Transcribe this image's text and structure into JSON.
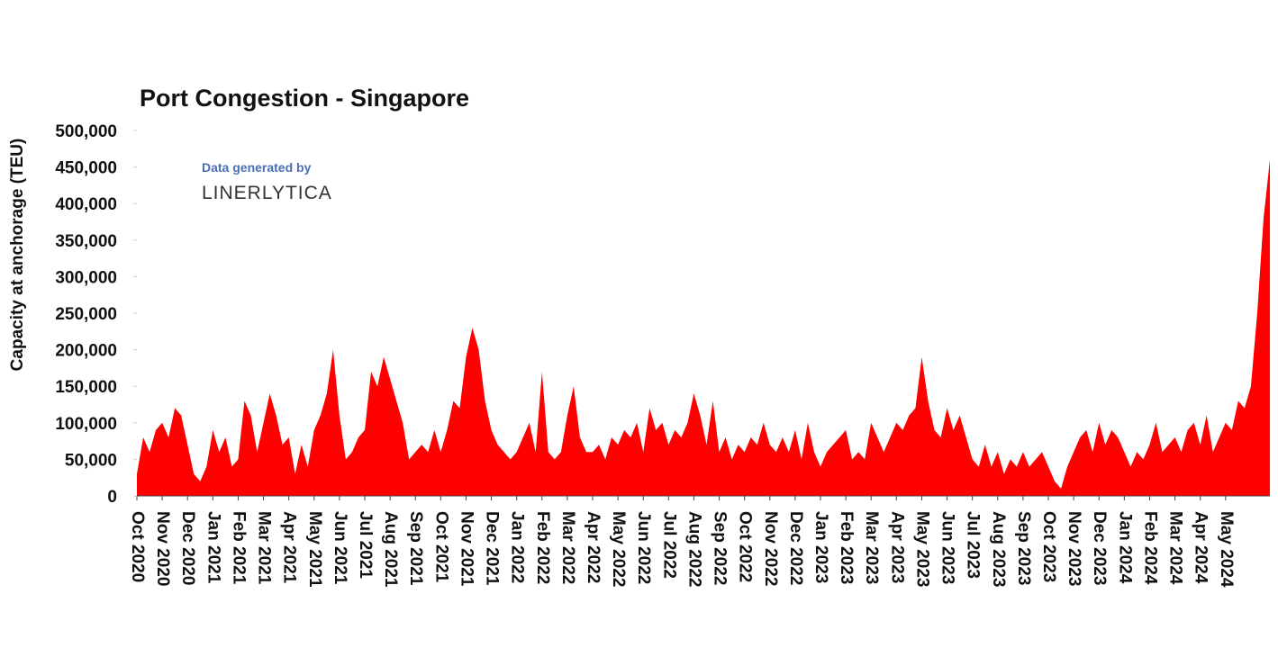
{
  "chart_data": {
    "type": "area",
    "title": "Port Congestion - Singapore",
    "y_label": "Capacity at anchorage (TEU)",
    "annotations": [
      "Data generated by",
      "LINERLYTICA"
    ],
    "color": "#ff0000",
    "ylim": [
      0,
      500000
    ],
    "yticks": [
      0,
      {
        "value": 50000,
        "label": "50,000"
      },
      {
        "value": 100000,
        "label": "100,000"
      },
      {
        "value": 150000,
        "label": "150,000"
      },
      {
        "value": 200000,
        "label": "200,000"
      },
      {
        "value": 250000,
        "label": "250,000"
      },
      {
        "value": 300000,
        "label": "300,000"
      },
      {
        "value": 350000,
        "label": "350,000"
      },
      {
        "value": 400000,
        "label": "400,000"
      },
      {
        "value": 450000,
        "label": "450,000"
      },
      {
        "value": 500000,
        "label": "500,000"
      }
    ],
    "categories": [
      "Oct 2020",
      null,
      null,
      null,
      "Nov 2020",
      null,
      null,
      null,
      "Dec 2020",
      null,
      null,
      null,
      "Jan 2021",
      null,
      null,
      null,
      "Feb 2021",
      null,
      null,
      null,
      "Mar 2021",
      null,
      null,
      null,
      "Apr 2021",
      null,
      null,
      null,
      "May 2021",
      null,
      null,
      null,
      "Jun 2021",
      null,
      null,
      null,
      "Jul 2021",
      null,
      null,
      null,
      "Aug 2021",
      null,
      null,
      null,
      "Sep 2021",
      null,
      null,
      null,
      "Oct 2021",
      null,
      null,
      null,
      "Nov 2021",
      null,
      null,
      null,
      "Dec 2021",
      null,
      null,
      null,
      "Jan 2022",
      null,
      null,
      null,
      "Feb 2022",
      null,
      null,
      null,
      "Mar 2022",
      null,
      null,
      null,
      "Apr 2022",
      null,
      null,
      null,
      "May 2022",
      null,
      null,
      null,
      "Jun 2022",
      null,
      null,
      null,
      "Jul 2022",
      null,
      null,
      null,
      "Aug 2022",
      null,
      null,
      null,
      "Sep 2022",
      null,
      null,
      null,
      "Oct 2022",
      null,
      null,
      null,
      "Nov 2022",
      null,
      null,
      null,
      "Dec 2022",
      null,
      null,
      null,
      "Jan 2023",
      null,
      null,
      null,
      "Feb 2023",
      null,
      null,
      null,
      "Mar 2023",
      null,
      null,
      null,
      "Apr 2023",
      null,
      null,
      null,
      "May 2023",
      null,
      null,
      null,
      "Jun 2023",
      null,
      null,
      null,
      "Jul 2023",
      null,
      null,
      null,
      "Aug 2023",
      null,
      null,
      null,
      "Sep 2023",
      null,
      null,
      null,
      "Oct 2023",
      null,
      null,
      null,
      "Nov 2023",
      null,
      null,
      null,
      "Dec 2023",
      null,
      null,
      null,
      "Jan 2024",
      null,
      null,
      null,
      "Feb 2024",
      null,
      null,
      null,
      "Mar 2024",
      null,
      null,
      null,
      "Apr 2024",
      null,
      null,
      null,
      "May 2024",
      null,
      null,
      null,
      null,
      null,
      null,
      null
    ],
    "values": [
      30000,
      80000,
      60000,
      90000,
      100000,
      80000,
      120000,
      110000,
      70000,
      30000,
      20000,
      40000,
      90000,
      60000,
      80000,
      40000,
      50000,
      130000,
      110000,
      60000,
      100000,
      140000,
      110000,
      70000,
      80000,
      30000,
      70000,
      40000,
      90000,
      110000,
      140000,
      200000,
      110000,
      50000,
      60000,
      80000,
      90000,
      170000,
      150000,
      190000,
      160000,
      130000,
      100000,
      50000,
      60000,
      70000,
      60000,
      90000,
      60000,
      90000,
      130000,
      120000,
      190000,
      230000,
      200000,
      130000,
      90000,
      70000,
      60000,
      50000,
      60000,
      80000,
      100000,
      60000,
      170000,
      60000,
      50000,
      60000,
      110000,
      150000,
      80000,
      60000,
      60000,
      70000,
      50000,
      80000,
      70000,
      90000,
      80000,
      100000,
      60000,
      120000,
      90000,
      100000,
      70000,
      90000,
      80000,
      100000,
      140000,
      110000,
      70000,
      130000,
      60000,
      80000,
      50000,
      70000,
      60000,
      80000,
      70000,
      100000,
      70000,
      60000,
      80000,
      60000,
      90000,
      50000,
      100000,
      60000,
      40000,
      60000,
      70000,
      80000,
      90000,
      50000,
      60000,
      50000,
      100000,
      80000,
      60000,
      80000,
      100000,
      90000,
      110000,
      120000,
      190000,
      130000,
      90000,
      80000,
      120000,
      90000,
      110000,
      80000,
      50000,
      40000,
      70000,
      40000,
      60000,
      30000,
      50000,
      40000,
      60000,
      40000,
      50000,
      60000,
      40000,
      20000,
      10000,
      40000,
      60000,
      80000,
      90000,
      60000,
      100000,
      70000,
      90000,
      80000,
      60000,
      40000,
      60000,
      50000,
      70000,
      100000,
      60000,
      70000,
      80000,
      60000,
      90000,
      100000,
      70000,
      110000,
      60000,
      80000,
      100000,
      90000,
      130000,
      120000,
      150000,
      250000,
      380000,
      460000
    ]
  }
}
